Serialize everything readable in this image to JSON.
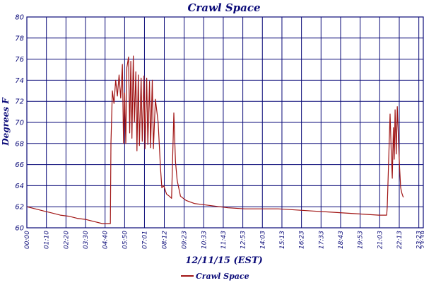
{
  "chart_data": {
    "type": "line",
    "title": "Crawl Space",
    "xlabel": "12/11/15 (EST)",
    "ylabel": "Degrees F",
    "ylim": [
      60,
      80
    ],
    "yticks": [
      60,
      62,
      64,
      66,
      68,
      70,
      72,
      74,
      76,
      78,
      80
    ],
    "xticks": [
      "00:00",
      "01:10",
      "02:20",
      "03:30",
      "04:40",
      "05:50",
      "07:01",
      "08:12",
      "09:23",
      "10:33",
      "11:43",
      "12:53",
      "14:03",
      "15:13",
      "16:23",
      "17:33",
      "18:43",
      "19:53",
      "21:03",
      "22:13",
      "23:23",
      "23:39"
    ],
    "grid": true,
    "legend_position": "bottom",
    "colors": {
      "series": "#a01414",
      "grid": "#0a0a78",
      "text": "#0a0a78"
    },
    "series": [
      {
        "name": "Crawl Space",
        "points": [
          [
            "00:00",
            62.0
          ],
          [
            "00:30",
            61.8
          ],
          [
            "01:00",
            61.6
          ],
          [
            "01:30",
            61.4
          ],
          [
            "02:00",
            61.2
          ],
          [
            "02:30",
            61.1
          ],
          [
            "03:00",
            60.9
          ],
          [
            "03:30",
            60.8
          ],
          [
            "04:00",
            60.6
          ],
          [
            "04:30",
            60.4
          ],
          [
            "04:59",
            60.4
          ],
          [
            "05:01",
            68.0
          ],
          [
            "05:06",
            73.0
          ],
          [
            "05:12",
            71.8
          ],
          [
            "05:18",
            74.0
          ],
          [
            "05:24",
            72.5
          ],
          [
            "05:30",
            74.5
          ],
          [
            "05:36",
            72.3
          ],
          [
            "05:42",
            75.5
          ],
          [
            "05:46",
            68.0
          ],
          [
            "05:50",
            72.8
          ],
          [
            "05:54",
            68.0
          ],
          [
            "05:58",
            75.2
          ],
          [
            "06:04",
            76.2
          ],
          [
            "06:08",
            69.0
          ],
          [
            "06:12",
            75.8
          ],
          [
            "06:16",
            68.5
          ],
          [
            "06:21",
            76.3
          ],
          [
            "06:25",
            70.0
          ],
          [
            "06:30",
            74.8
          ],
          [
            "06:34",
            67.3
          ],
          [
            "06:39",
            74.5
          ],
          [
            "06:43",
            67.8
          ],
          [
            "06:49",
            74.2
          ],
          [
            "06:53",
            68.2
          ],
          [
            "06:59",
            74.4
          ],
          [
            "07:03",
            67.5
          ],
          [
            "07:09",
            74.2
          ],
          [
            "07:13",
            67.9
          ],
          [
            "07:19",
            73.9
          ],
          [
            "07:23",
            67.6
          ],
          [
            "07:29",
            74.0
          ],
          [
            "07:33",
            67.5
          ],
          [
            "07:40",
            72.2
          ],
          [
            "07:50",
            70.0
          ],
          [
            "07:58",
            65.8
          ],
          [
            "08:03",
            63.8
          ],
          [
            "08:10",
            64.0
          ],
          [
            "08:20",
            63.2
          ],
          [
            "08:30",
            63.0
          ],
          [
            "08:38",
            62.8
          ],
          [
            "08:46",
            70.9
          ],
          [
            "08:52",
            66.3
          ],
          [
            "08:58",
            64.5
          ],
          [
            "09:10",
            63.0
          ],
          [
            "09:30",
            62.6
          ],
          [
            "10:00",
            62.3
          ],
          [
            "11:00",
            62.1
          ],
          [
            "12:00",
            61.9
          ],
          [
            "13:00",
            61.8
          ],
          [
            "14:00",
            61.8
          ],
          [
            "15:00",
            61.8
          ],
          [
            "16:00",
            61.7
          ],
          [
            "17:00",
            61.6
          ],
          [
            "18:00",
            61.5
          ],
          [
            "19:00",
            61.4
          ],
          [
            "20:00",
            61.3
          ],
          [
            "21:00",
            61.2
          ],
          [
            "21:28",
            61.2
          ],
          [
            "21:30",
            62.0
          ],
          [
            "21:40",
            70.8
          ],
          [
            "21:44",
            67.5
          ],
          [
            "21:48",
            64.7
          ],
          [
            "21:52",
            69.5
          ],
          [
            "21:55",
            66.5
          ],
          [
            "21:58",
            71.2
          ],
          [
            "22:02",
            67.0
          ],
          [
            "22:06",
            71.5
          ],
          [
            "22:10",
            68.5
          ],
          [
            "22:14",
            65.8
          ],
          [
            "22:18",
            63.8
          ],
          [
            "22:22",
            63.3
          ],
          [
            "22:26",
            63.0
          ],
          [
            "22:28",
            62.9
          ]
        ]
      }
    ]
  }
}
